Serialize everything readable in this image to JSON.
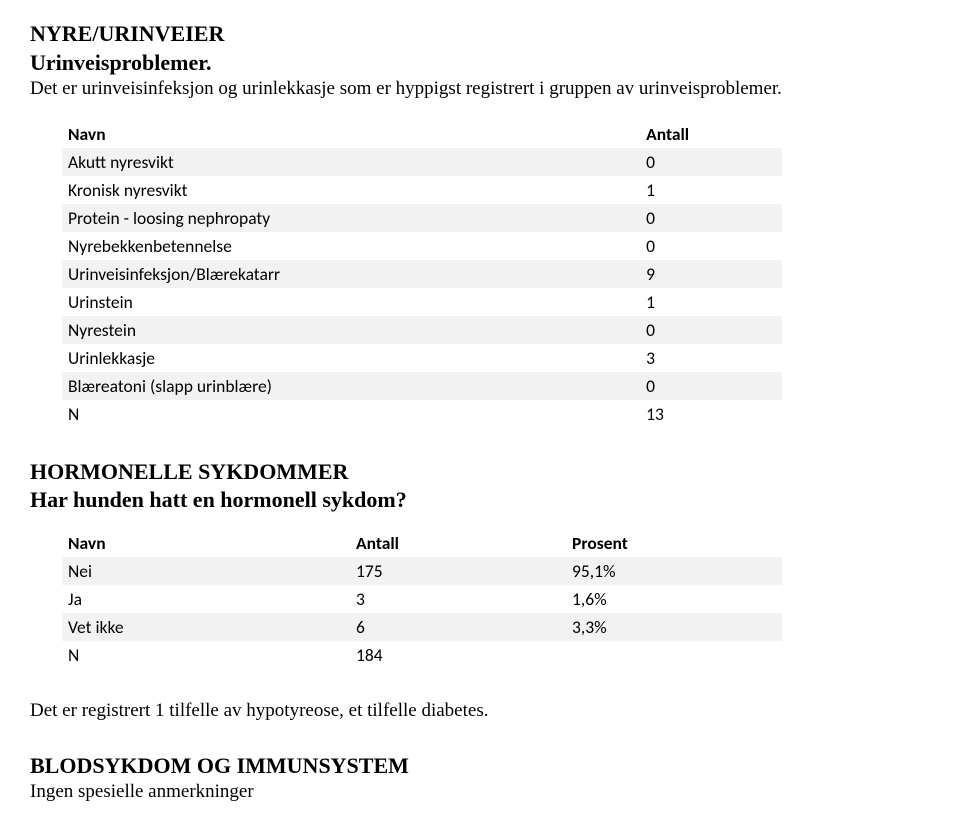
{
  "section1": {
    "title": "NYRE/URINVEIER",
    "subtitle": "Urinveisproblemer.",
    "intro": "Det er urinveisinfeksjon og urinlekkasje som er hyppigst registrert i gruppen av urinveisproblemer.",
    "table": {
      "header_name": "Navn",
      "header_count": "Antall",
      "row_bg_odd": "#f2f2f2",
      "row_bg_even": "#ffffff",
      "font_family": "Calibri",
      "font_size_pt": 13,
      "rows": [
        {
          "name": "Akutt nyresvikt",
          "count": 0
        },
        {
          "name": "Kronisk nyresvikt",
          "count": 1
        },
        {
          "name": "Protein - loosing nephropaty",
          "count": 0
        },
        {
          "name": "Nyrebekkenbetennelse",
          "count": 0
        },
        {
          "name": "Urinveisinfeksjon/Blærekatarr",
          "count": 9
        },
        {
          "name": "Urinstein",
          "count": 1
        },
        {
          "name": "Nyrestein",
          "count": 0
        },
        {
          "name": "Urinlekkasje",
          "count": 3
        },
        {
          "name": "Blæreatoni (slapp urinblære)",
          "count": 0
        },
        {
          "name": "N",
          "count": 13
        }
      ]
    }
  },
  "section2": {
    "title": "HORMONELLE SYKDOMMER",
    "subtitle": "Har hunden hatt en hormonell sykdom?",
    "table": {
      "header_name": "Navn",
      "header_count": "Antall",
      "header_pct": "Prosent",
      "row_bg_odd": "#f2f2f2",
      "row_bg_even": "#ffffff",
      "font_family": "Calibri",
      "font_size_pt": 13,
      "rows": [
        {
          "name": "Nei",
          "count": 175,
          "pct": "95,1%"
        },
        {
          "name": "Ja",
          "count": 3,
          "pct": "1,6%"
        },
        {
          "name": "Vet ikke",
          "count": 6,
          "pct": "3,3%"
        },
        {
          "name": "N",
          "count": 184,
          "pct": ""
        }
      ]
    },
    "note": "Det er registrert 1 tilfelle av hypotyreose, et tilfelle diabetes."
  },
  "section3": {
    "title": "BLODSYKDOM OG IMMUNSYSTEM",
    "note": "Ingen spesielle anmerkninger"
  }
}
